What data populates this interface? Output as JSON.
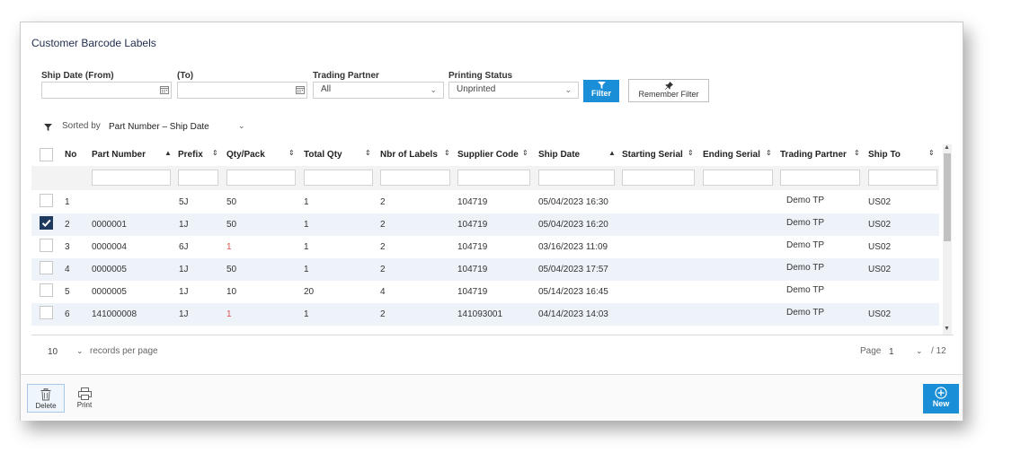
{
  "title": "Customer Barcode Labels",
  "filters": {
    "ship_date_from_label": "Ship Date (From)",
    "ship_date_from_value": "",
    "ship_date_to_label": "(To)",
    "ship_date_to_value": "",
    "trading_partner_label": "Trading Partner",
    "trading_partner_value": "All",
    "printing_status_label": "Printing Status",
    "printing_status_value": "Unprinted",
    "filter_button": "Filter",
    "remember_filter_button": "Remember Filter"
  },
  "sort": {
    "label": "Sorted by",
    "value": "Part Number – Ship Date"
  },
  "table": {
    "columns": [
      "No",
      "Part Number",
      "Prefix",
      "Qty/Pack",
      "Total Qty",
      "Nbr of Labels",
      "Supplier Code",
      "Ship Date",
      "Starting Serial",
      "Ending Serial",
      "Trading Partner",
      "Ship To"
    ],
    "rows": [
      {
        "checked": false,
        "no": "1",
        "part_number": "",
        "prefix": "5J",
        "qty_pack": "50",
        "total_qty": "1",
        "nbr_labels": "2",
        "supplier_code": "104719",
        "ship_date": "05/04/2023 16:30",
        "starting_serial": "",
        "ending_serial": "",
        "trading_partner": "Demo TP",
        "ship_to": "US02"
      },
      {
        "checked": true,
        "no": "2",
        "part_number": "0000001",
        "prefix": "1J",
        "qty_pack": "50",
        "total_qty": "1",
        "nbr_labels": "2",
        "supplier_code": "104719",
        "ship_date": "05/04/2023 16:20",
        "starting_serial": "",
        "ending_serial": "",
        "trading_partner": "Demo TP",
        "ship_to": "US02"
      },
      {
        "checked": false,
        "no": "3",
        "part_number": "0000004",
        "prefix": "6J",
        "qty_pack": "1",
        "total_qty": "1",
        "nbr_labels": "2",
        "supplier_code": "104719",
        "ship_date": "03/16/2023 11:09",
        "starting_serial": "",
        "ending_serial": "",
        "trading_partner": "Demo TP",
        "ship_to": "US02"
      },
      {
        "checked": false,
        "no": "4",
        "part_number": "0000005",
        "prefix": "1J",
        "qty_pack": "50",
        "total_qty": "1",
        "nbr_labels": "2",
        "supplier_code": "104719",
        "ship_date": "05/04/2023 17:57",
        "starting_serial": "",
        "ending_serial": "",
        "trading_partner": "Demo TP",
        "ship_to": "US02"
      },
      {
        "checked": false,
        "no": "5",
        "part_number": "0000005",
        "prefix": "1J",
        "qty_pack": "10",
        "total_qty": "20",
        "nbr_labels": "4",
        "supplier_code": "104719",
        "ship_date": "05/14/2023 16:45",
        "starting_serial": "",
        "ending_serial": "",
        "trading_partner": "Demo TP",
        "ship_to": ""
      },
      {
        "checked": false,
        "no": "6",
        "part_number": "141000008",
        "prefix": "1J",
        "qty_pack": "1",
        "total_qty": "1",
        "nbr_labels": "2",
        "supplier_code": "141093001",
        "ship_date": "04/14/2023 14:03",
        "starting_serial": "",
        "ending_serial": "",
        "trading_partner": "Demo TP",
        "ship_to": "US02"
      }
    ],
    "highlight_color": "#d9534f"
  },
  "pagination": {
    "page_size": "10",
    "records_per_page_label": "records per page",
    "page_label": "Page",
    "current_page": "1",
    "total_pages": "/ 12"
  },
  "toolbar": {
    "delete_label": "Delete",
    "print_label": "Print",
    "new_label": "New"
  },
  "colors": {
    "accent": "#1a8fd8",
    "checkbox_checked": "#1f3a5f",
    "row_alt": "#eef3fa"
  }
}
